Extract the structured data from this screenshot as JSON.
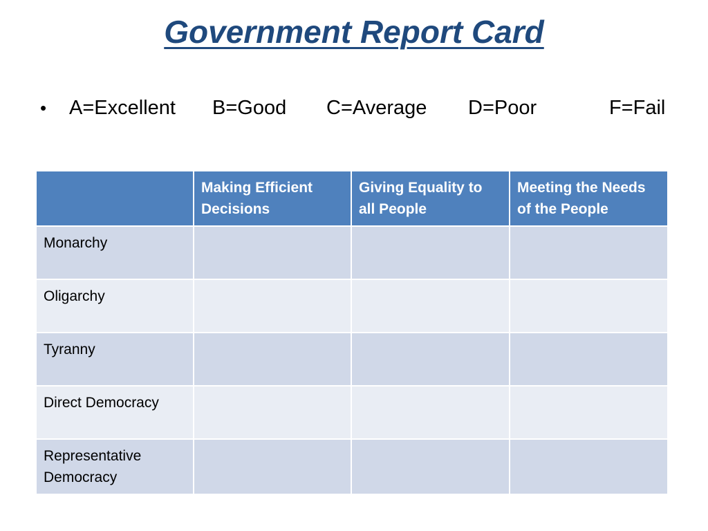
{
  "slide": {
    "title": "Government Report Card",
    "grades": [
      "A=Excellent",
      "B=Good",
      "C=Average",
      "D=Poor",
      "F=Fail"
    ]
  },
  "table": {
    "corner_label": "",
    "columns": [
      "Making Efficient Decisions",
      "Giving Equality to all People",
      "Meeting the Needs of the People"
    ],
    "rows": [
      {
        "label": "Monarchy",
        "cells": [
          "",
          "",
          ""
        ]
      },
      {
        "label": "Oligarchy",
        "cells": [
          "",
          "",
          ""
        ]
      },
      {
        "label": "Tyranny",
        "cells": [
          "",
          "",
          ""
        ]
      },
      {
        "label": "Direct Democracy",
        "cells": [
          "",
          "",
          ""
        ]
      },
      {
        "label": "Representative Democracy",
        "cells": [
          "",
          "",
          ""
        ]
      }
    ]
  },
  "colors": {
    "title": "#1f497d",
    "header_fill": "#4f81bd",
    "row_band_dark": "#d0d8e8",
    "row_band_light": "#e9edf4"
  }
}
